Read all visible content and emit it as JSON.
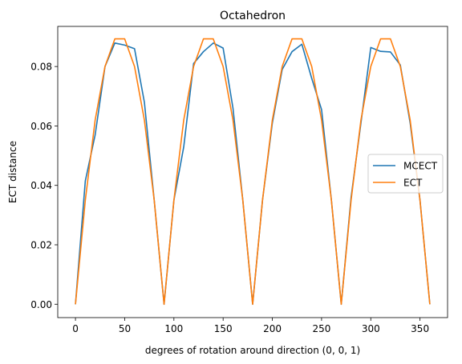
{
  "chart_data": {
    "type": "line",
    "title": "Octahedron",
    "xlabel": "degrees of rotation around direction (0, 0, 1)",
    "ylabel": "ECT distance",
    "xlim": [
      -18,
      378
    ],
    "ylim": [
      -0.0045,
      0.0935
    ],
    "xticks": [
      0,
      50,
      100,
      150,
      200,
      250,
      300,
      350
    ],
    "xtick_labels": [
      "0",
      "50",
      "100",
      "150",
      "200",
      "250",
      "300",
      "350"
    ],
    "yticks": [
      0.0,
      0.02,
      0.04,
      0.06,
      0.08
    ],
    "ytick_labels": [
      "0.00",
      "0.02",
      "0.04",
      "0.06",
      "0.08"
    ],
    "grid": false,
    "legend_position": "center-right",
    "x": [
      0,
      10,
      20,
      30,
      40,
      50,
      60,
      70,
      80,
      90,
      100,
      110,
      120,
      130,
      140,
      150,
      160,
      170,
      180,
      190,
      200,
      210,
      220,
      230,
      240,
      250,
      260,
      270,
      280,
      290,
      300,
      310,
      320,
      330,
      340,
      350,
      360
    ],
    "series": [
      {
        "name": "MCECT",
        "color": "#1f77b4",
        "values": [
          0.0,
          0.0415,
          0.057,
          0.08,
          0.0879,
          0.0872,
          0.086,
          0.068,
          0.035,
          0.0,
          0.035,
          0.053,
          0.081,
          0.085,
          0.0879,
          0.0862,
          0.066,
          0.035,
          0.0,
          0.035,
          0.061,
          0.079,
          0.085,
          0.0875,
          0.076,
          0.0655,
          0.035,
          0.0,
          0.036,
          0.061,
          0.0864,
          0.0851,
          0.0849,
          0.0805,
          0.061,
          0.035,
          0.0
        ]
      },
      {
        "name": "ECT",
        "color": "#ff7f0e",
        "values": [
          0.0,
          0.035,
          0.062,
          0.08,
          0.0893,
          0.0893,
          0.08,
          0.062,
          0.035,
          0.0,
          0.035,
          0.062,
          0.08,
          0.0893,
          0.0893,
          0.08,
          0.062,
          0.035,
          0.0,
          0.035,
          0.062,
          0.08,
          0.0893,
          0.0893,
          0.08,
          0.062,
          0.035,
          0.0,
          0.035,
          0.062,
          0.08,
          0.0893,
          0.0893,
          0.08,
          0.062,
          0.035,
          0.0
        ]
      }
    ]
  }
}
